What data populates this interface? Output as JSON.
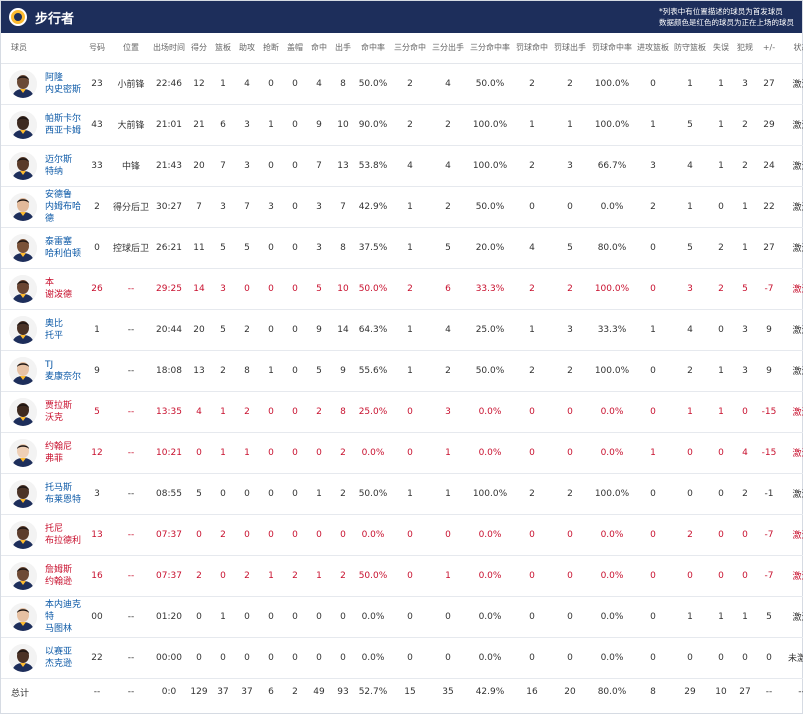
{
  "header": {
    "team_name": "步行者",
    "note_line1": "*列表中有位置描述的球员为首发球员",
    "note_line2": "数据颜色是红色的球员为正在上场的球员",
    "logo_icon": "pacers-logo-icon"
  },
  "columns": [
    "球员",
    "号码",
    "位置",
    "出场时间",
    "得分",
    "篮板",
    "助攻",
    "抢断",
    "盖帽",
    "命中",
    "出手",
    "命中率",
    "三分命中",
    "三分出手",
    "三分命中率",
    "罚球命中",
    "罚球出手",
    "罚球命中率",
    "进攻篮板",
    "防守篮板",
    "失误",
    "犯规",
    "+/-",
    "状态"
  ],
  "players": [
    {
      "first": "阿隆",
      "last": "内史密斯",
      "num": "23",
      "pos": "小前锋",
      "min": "22:46",
      "pts": "12",
      "reb": "1",
      "ast": "4",
      "stl": "0",
      "blk": "0",
      "fgm": "4",
      "fga": "8",
      "fgp": "50.0%",
      "tpm": "2",
      "tpa": "4",
      "tpp": "50.0%",
      "ftm": "2",
      "fta": "2",
      "ftp": "100.0%",
      "oreb": "0",
      "dreb": "1",
      "tov": "1",
      "pf": "3",
      "pm": "27",
      "status": "激活",
      "red": false,
      "skin": "#6b4a36"
    },
    {
      "first": "帕斯卡尔",
      "last": "西亚卡姆",
      "num": "43",
      "pos": "大前锋",
      "min": "21:01",
      "pts": "21",
      "reb": "6",
      "ast": "3",
      "stl": "1",
      "blk": "0",
      "fgm": "9",
      "fga": "10",
      "fgp": "90.0%",
      "tpm": "2",
      "tpa": "2",
      "tpp": "100.0%",
      "ftm": "1",
      "fta": "1",
      "ftp": "100.0%",
      "oreb": "1",
      "dreb": "5",
      "tov": "1",
      "pf": "2",
      "pm": "29",
      "status": "激活",
      "red": false,
      "skin": "#3d2a20"
    },
    {
      "first": "迈尔斯",
      "last": "特纳",
      "num": "33",
      "pos": "中锋",
      "min": "21:43",
      "pts": "20",
      "reb": "7",
      "ast": "3",
      "stl": "0",
      "blk": "0",
      "fgm": "7",
      "fga": "13",
      "fgp": "53.8%",
      "tpm": "4",
      "tpa": "4",
      "tpp": "100.0%",
      "ftm": "2",
      "fta": "3",
      "ftp": "66.7%",
      "oreb": "3",
      "dreb": "4",
      "tov": "1",
      "pf": "2",
      "pm": "24",
      "status": "激活",
      "red": false,
      "skin": "#5a3b2a"
    },
    {
      "first": "安德鲁",
      "last": "内姆布哈德",
      "num": "2",
      "pos": "得分后卫",
      "min": "30:27",
      "pts": "7",
      "reb": "3",
      "ast": "7",
      "stl": "3",
      "blk": "0",
      "fgm": "3",
      "fga": "7",
      "fgp": "42.9%",
      "tpm": "1",
      "tpa": "2",
      "tpp": "50.0%",
      "ftm": "0",
      "fta": "0",
      "ftp": "0.0%",
      "oreb": "2",
      "dreb": "1",
      "tov": "0",
      "pf": "1",
      "pm": "22",
      "status": "激活",
      "red": false,
      "skin": "#e2b99a"
    },
    {
      "first": "泰雷塞",
      "last": "哈利伯顿",
      "num": "0",
      "pos": "控球后卫",
      "min": "26:21",
      "pts": "11",
      "reb": "5",
      "ast": "5",
      "stl": "0",
      "blk": "0",
      "fgm": "3",
      "fga": "8",
      "fgp": "37.5%",
      "tpm": "1",
      "tpa": "5",
      "tpp": "20.0%",
      "ftm": "4",
      "fta": "5",
      "ftp": "80.0%",
      "oreb": "0",
      "dreb": "5",
      "tov": "2",
      "pf": "1",
      "pm": "27",
      "status": "激活",
      "red": false,
      "skin": "#7a5238"
    },
    {
      "first": "本",
      "last": "谢泼德",
      "num": "26",
      "pos": "--",
      "min": "29:25",
      "pts": "14",
      "reb": "3",
      "ast": "0",
      "stl": "0",
      "blk": "0",
      "fgm": "5",
      "fga": "10",
      "fgp": "50.0%",
      "tpm": "2",
      "tpa": "6",
      "tpp": "33.3%",
      "ftm": "2",
      "fta": "2",
      "ftp": "100.0%",
      "oreb": "0",
      "dreb": "3",
      "tov": "2",
      "pf": "5",
      "pm": "-7",
      "status": "激活",
      "red": true,
      "skin": "#6a4532"
    },
    {
      "first": "奥比",
      "last": "托平",
      "num": "1",
      "pos": "--",
      "min": "20:44",
      "pts": "20",
      "reb": "5",
      "ast": "2",
      "stl": "0",
      "blk": "0",
      "fgm": "9",
      "fga": "14",
      "fgp": "64.3%",
      "tpm": "1",
      "tpa": "4",
      "tpp": "25.0%",
      "ftm": "1",
      "fta": "3",
      "ftp": "33.3%",
      "oreb": "1",
      "dreb": "4",
      "tov": "0",
      "pf": "3",
      "pm": "9",
      "status": "激活",
      "red": false,
      "skin": "#4a3226"
    },
    {
      "first": "TJ",
      "last": "麦康奈尔",
      "num": "9",
      "pos": "--",
      "min": "18:08",
      "pts": "13",
      "reb": "2",
      "ast": "8",
      "stl": "1",
      "blk": "0",
      "fgm": "5",
      "fga": "9",
      "fgp": "55.6%",
      "tpm": "1",
      "tpa": "2",
      "tpp": "50.0%",
      "ftm": "2",
      "fta": "2",
      "ftp": "100.0%",
      "oreb": "0",
      "dreb": "2",
      "tov": "1",
      "pf": "3",
      "pm": "9",
      "status": "激活",
      "red": false,
      "skin": "#e8c2a4"
    },
    {
      "first": "贾拉斯",
      "last": "沃克",
      "num": "5",
      "pos": "--",
      "min": "13:35",
      "pts": "4",
      "reb": "1",
      "ast": "2",
      "stl": "0",
      "blk": "0",
      "fgm": "2",
      "fga": "8",
      "fgp": "25.0%",
      "tpm": "0",
      "tpa": "3",
      "tpp": "0.0%",
      "ftm": "0",
      "fta": "0",
      "ftp": "0.0%",
      "oreb": "0",
      "dreb": "1",
      "tov": "1",
      "pf": "0",
      "pm": "-15",
      "status": "激活",
      "red": true,
      "skin": "#3f2a1f"
    },
    {
      "first": "约翰尼",
      "last": "弗菲",
      "num": "12",
      "pos": "--",
      "min": "10:21",
      "pts": "0",
      "reb": "1",
      "ast": "1",
      "stl": "0",
      "blk": "0",
      "fgm": "0",
      "fga": "2",
      "fgp": "0.0%",
      "tpm": "0",
      "tpa": "1",
      "tpp": "0.0%",
      "ftm": "0",
      "fta": "0",
      "ftp": "0.0%",
      "oreb": "1",
      "dreb": "0",
      "tov": "0",
      "pf": "4",
      "pm": "-15",
      "status": "激活",
      "red": true,
      "skin": "#efcfb5"
    },
    {
      "first": "托马斯",
      "last": "布莱恩特",
      "num": "3",
      "pos": "--",
      "min": "08:55",
      "pts": "5",
      "reb": "0",
      "ast": "0",
      "stl": "0",
      "blk": "0",
      "fgm": "1",
      "fga": "2",
      "fgp": "50.0%",
      "tpm": "1",
      "tpa": "1",
      "tpp": "100.0%",
      "ftm": "2",
      "fta": "2",
      "ftp": "100.0%",
      "oreb": "0",
      "dreb": "0",
      "tov": "0",
      "pf": "2",
      "pm": "-1",
      "status": "激活",
      "red": false,
      "skin": "#4c3427"
    },
    {
      "first": "托尼",
      "last": "布拉德利",
      "num": "13",
      "pos": "--",
      "min": "07:37",
      "pts": "0",
      "reb": "2",
      "ast": "0",
      "stl": "0",
      "blk": "0",
      "fgm": "0",
      "fga": "0",
      "fgp": "0.0%",
      "tpm": "0",
      "tpa": "0",
      "tpp": "0.0%",
      "ftm": "0",
      "fta": "0",
      "ftp": "0.0%",
      "oreb": "0",
      "dreb": "2",
      "tov": "0",
      "pf": "0",
      "pm": "-7",
      "status": "激活",
      "red": true,
      "skin": "#5c3d2c"
    },
    {
      "first": "詹姆斯",
      "last": "约翰逊",
      "num": "16",
      "pos": "--",
      "min": "07:37",
      "pts": "2",
      "reb": "0",
      "ast": "2",
      "stl": "1",
      "blk": "2",
      "fgm": "1",
      "fga": "2",
      "fgp": "50.0%",
      "tpm": "0",
      "tpa": "1",
      "tpp": "0.0%",
      "ftm": "0",
      "fta": "0",
      "ftp": "0.0%",
      "oreb": "0",
      "dreb": "0",
      "tov": "0",
      "pf": "0",
      "pm": "-7",
      "status": "激活",
      "red": true,
      "skin": "#6e4a35"
    },
    {
      "first": "本内迪克特",
      "last": "马图林",
      "num": "00",
      "pos": "--",
      "min": "01:20",
      "pts": "0",
      "reb": "1",
      "ast": "0",
      "stl": "0",
      "blk": "0",
      "fgm": "0",
      "fga": "0",
      "fgp": "0.0%",
      "tpm": "0",
      "tpa": "0",
      "tpp": "0.0%",
      "ftm": "0",
      "fta": "0",
      "ftp": "0.0%",
      "oreb": "0",
      "dreb": "1",
      "tov": "1",
      "pf": "1",
      "pm": "5",
      "status": "激活",
      "red": false,
      "skin": "#e6c0a2"
    },
    {
      "first": "以赛亚",
      "last": "杰克逊",
      "num": "22",
      "pos": "--",
      "min": "00:00",
      "pts": "0",
      "reb": "0",
      "ast": "0",
      "stl": "0",
      "blk": "0",
      "fgm": "0",
      "fga": "0",
      "fgp": "0.0%",
      "tpm": "0",
      "tpa": "0",
      "tpp": "0.0%",
      "ftm": "0",
      "fta": "0",
      "ftp": "0.0%",
      "oreb": "0",
      "dreb": "0",
      "tov": "0",
      "pf": "0",
      "pm": "0",
      "status": "未激活",
      "red": false,
      "skin": "#4b3225"
    }
  ],
  "totals": {
    "label": "总计",
    "num": "--",
    "pos": "--",
    "min": "0:0",
    "pts": "129",
    "reb": "37",
    "ast": "37",
    "stl": "6",
    "blk": "2",
    "fgm": "49",
    "fga": "93",
    "fgp": "52.7%",
    "tpm": "15",
    "tpa": "35",
    "tpp": "42.9%",
    "ftm": "16",
    "fta": "20",
    "ftp": "80.0%",
    "oreb": "8",
    "dreb": "29",
    "tov": "10",
    "pf": "27",
    "pm": "--",
    "status": "--"
  },
  "colors": {
    "header_bg": "#1d2e5b",
    "link": "#0d5aa7",
    "oncourt": "#c8102e",
    "logo_gold": "#fdbb30"
  }
}
